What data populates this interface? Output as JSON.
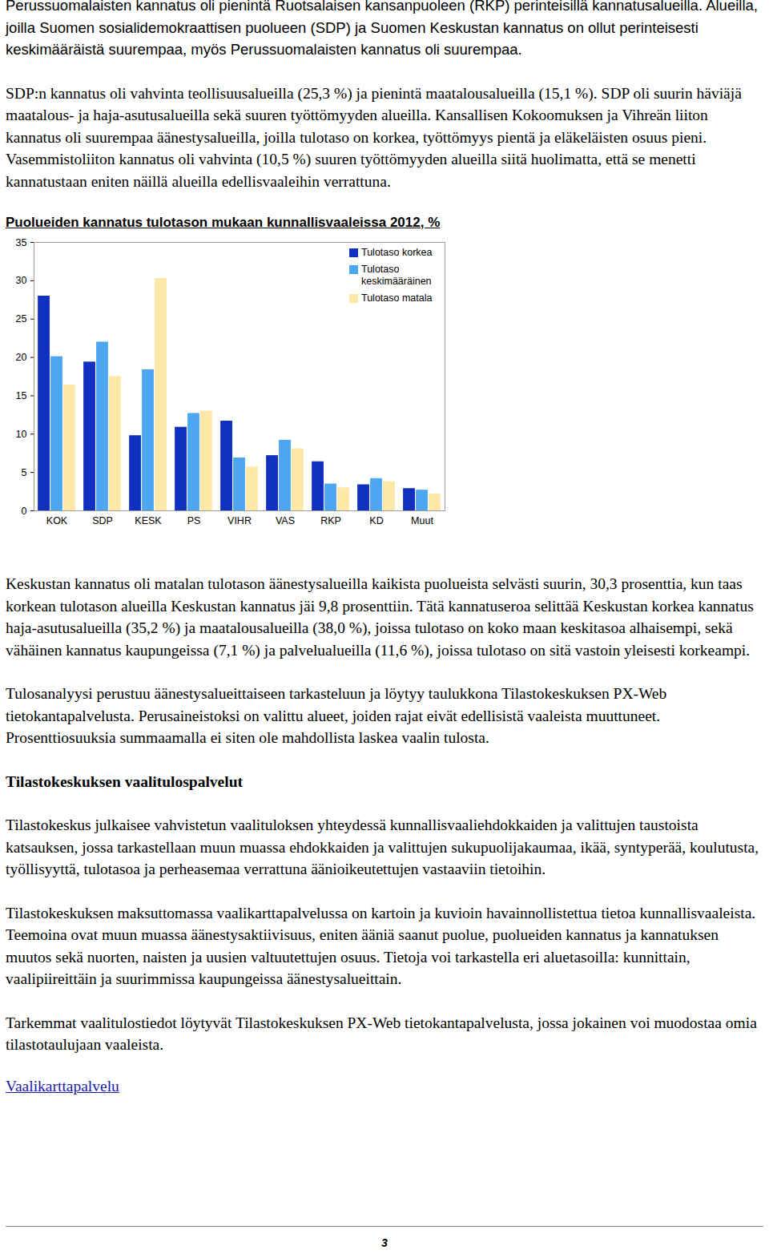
{
  "paragraphs_before": [
    "Perussuomalaisten kannatus oli pienintä Ruotsalaisen kansanpuoleen (RKP) perinteisillä kannatusalueilla. Alueilla, joilla Suomen sosialidemokraattisen puolueen (SDP) ja Suomen Keskustan kannatus on ollut perinteisesti keskimääräistä suurempaa, myös Perussuomalaisten kannatus oli suurempaa.",
    "SDP:n kannatus oli vahvinta teollisuusalueilla (25,3 %) ja pienintä maatalousalueilla (15,1 %). SDP oli suurin häviäjä maatalous- ja haja-asutusalueilla sekä suuren työttömyyden alueilla. Kansallisen Kokoomuksen ja Vihreän liiton kannatus oli suurempaa äänestysalueilla, joilla tulotaso on korkea, työttömyys pientä ja eläkeläisten osuus pieni. Vasemmistoliiton kannatus oli vahvinta (10,5 %) suuren työttömyyden alueilla siitä huolimatta, että se menetti kannatustaan eniten näillä alueilla edellisvaaleihin verrattuna."
  ],
  "chart_data": {
    "type": "bar",
    "title": "Puolueiden kannatus tulotason mukaan kunnallisvaaleissa 2012, %",
    "categories": [
      "KOK",
      "SDP",
      "KESK",
      "PS",
      "VIHR",
      "VAS",
      "RKP",
      "KD",
      "Muut"
    ],
    "series": [
      {
        "name": "Tulotaso korkea",
        "color": "#1030c0",
        "values": [
          28.0,
          19.4,
          9.8,
          10.9,
          11.7,
          7.2,
          6.4,
          3.4,
          2.9
        ]
      },
      {
        "name": "Tulotaso keskimääräinen",
        "color": "#4da6f0",
        "values": [
          20.1,
          22.0,
          18.4,
          12.7,
          6.9,
          9.2,
          3.5,
          4.2,
          2.7
        ]
      },
      {
        "name": "Tulotaso matala",
        "color": "#fde8a8",
        "values": [
          16.4,
          17.5,
          30.3,
          13.0,
          5.7,
          8.1,
          3.0,
          3.8,
          2.2
        ]
      }
    ],
    "ylim": [
      0,
      35
    ],
    "yticks": [
      0,
      5,
      10,
      15,
      20,
      25,
      30,
      35
    ],
    "grid": false,
    "legend": "top-right"
  },
  "paragraphs_after": [
    "Keskustan kannatus oli matalan tulotason äänestysalueilla kaikista puolueista selvästi suurin, 30,3 prosenttia, kun taas korkean tulotason alueilla Keskustan kannatus jäi 9,8 prosenttiin. Tätä kannatuseroa selittää Keskustan korkea kannatus haja-asutusalueilla (35,2 %) ja maatalousalueilla (38,0 %), joissa tulotaso on koko maan keskitasoa alhaisempi, sekä vähäinen kannatus kaupungeissa (7,1 %) ja palvelualueilla (11,6 %), joissa tulotaso on sitä vastoin yleisesti korkeampi.",
    "Tulosanalyysi perustuu äänestysalueittaiseen tarkasteluun ja löytyy taulukkona Tilastokeskuksen PX-Web tietokantapalvelusta. Perusaineistoksi on valittu alueet, joiden rajat eivät edellisistä vaaleista muuttuneet. Prosenttiosuuksia summaamalla ei siten ole mahdollista laskea vaalin tulosta."
  ],
  "heading": "Tilastokeskuksen vaalitulospalvelut",
  "paragraphs_end": [
    "Tilastokeskus julkaisee vahvistetun vaalituloksen yhteydessä kunnallisvaaliehdokkaiden ja valittujen taustoista katsauksen, jossa tarkastellaan muun muassa ehdokkaiden ja valittujen sukupuolijakaumaa, ikää, syntyperää, koulutusta, työllisyyttä, tulotasoa ja perheasemaa verrattuna äänioikeutettujen vastaaviin tietoihin.",
    "Tilastokeskuksen maksuttomassa vaalikarttapalvelussa on kartoin ja kuvioin havainnollistettua tietoa kunnallisvaaleista. Teemoina ovat muun muassa äänestysaktiivisuus, eniten ääniä saanut puolue, puolueiden kannatus ja kannatuksen muutos sekä nuorten, naisten ja uusien valtuutettujen osuus. Tietoja voi tarkastella eri aluetasoilla: kunnittain, vaalipiireittäin ja suurimmissa kaupungeissa äänestysalueittain.",
    "Tarkemmat vaalitulostiedot löytyvät Tilastokeskuksen PX-Web tietokantapalvelusta, jossa jokainen voi muodostaa omia tilastotaulujaan vaaleista."
  ],
  "link": "Vaalikarttapalvelu",
  "page_number": 3
}
